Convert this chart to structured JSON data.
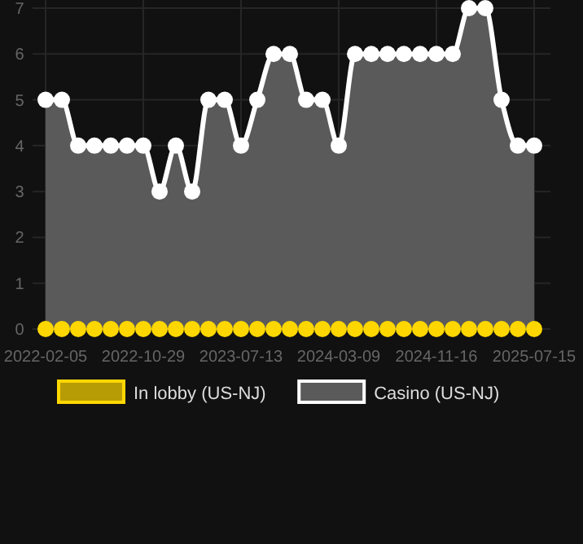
{
  "chart_data": {
    "type": "scatter",
    "categories": [
      "2022-02-05",
      null,
      null,
      null,
      null,
      null,
      "2022-10-29",
      null,
      null,
      null,
      null,
      null,
      "2023-07-13",
      null,
      null,
      null,
      null,
      null,
      "2024-03-09",
      null,
      null,
      null,
      null,
      null,
      "2024-11-16",
      null,
      null,
      null,
      null,
      null,
      "2025-07-15"
    ],
    "series": [
      {
        "name": "In lobby (US-NJ)",
        "color": "#ffd700",
        "values": [
          0,
          0,
          0,
          0,
          0,
          0,
          0,
          0,
          0,
          0,
          0,
          0,
          0,
          0,
          0,
          0,
          0,
          0,
          0,
          0,
          0,
          0,
          0,
          0,
          0,
          0,
          0,
          0,
          0,
          0,
          0
        ]
      },
      {
        "name": "Casino (US-NJ)",
        "color": "#ffffff",
        "type": "area",
        "values": [
          5,
          5,
          4,
          4,
          4,
          4,
          4,
          3,
          4,
          3,
          5,
          5,
          4,
          5,
          6,
          6,
          5,
          5,
          4,
          6,
          6,
          6,
          6,
          6,
          6,
          6,
          7,
          7,
          5,
          4,
          4
        ]
      }
    ],
    "ylim": [
      0,
      7
    ],
    "yticks": [
      0,
      1,
      2,
      3,
      4,
      5,
      6,
      7
    ],
    "grid": true,
    "legend": "bottom",
    "marker": "circle"
  }
}
